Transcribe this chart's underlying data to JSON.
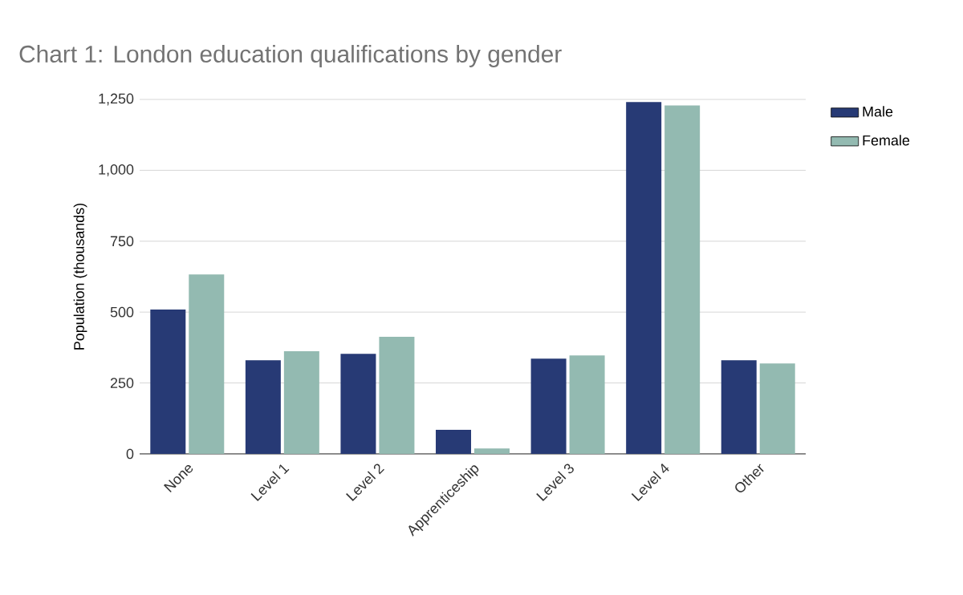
{
  "chart_data": {
    "type": "bar",
    "title": "Chart 1: London education qualifications by gender",
    "ylabel": "Population (thousands)",
    "categories": [
      "None",
      "Level 1",
      "Level 2",
      "Apprenticeship",
      "Level 3",
      "Level 4",
      "Other"
    ],
    "series": [
      {
        "name": "Male",
        "color": "#273a75",
        "values": [
          509,
          330,
          353,
          85,
          336,
          1241,
          330
        ]
      },
      {
        "name": "Female",
        "color": "#93bab1",
        "values": [
          633,
          362,
          413,
          19,
          347,
          1229,
          319
        ]
      }
    ],
    "ylim": [
      0,
      1250
    ],
    "yticks": [
      0,
      {
        "value": 250,
        "label": "250"
      },
      {
        "value": 500,
        "label": "500"
      },
      {
        "value": 750,
        "label": "750"
      },
      {
        "value": 1000,
        "label": "1,000"
      },
      {
        "value": 1250,
        "label": "1,250"
      }
    ],
    "grid": "y",
    "legend": "top right"
  }
}
